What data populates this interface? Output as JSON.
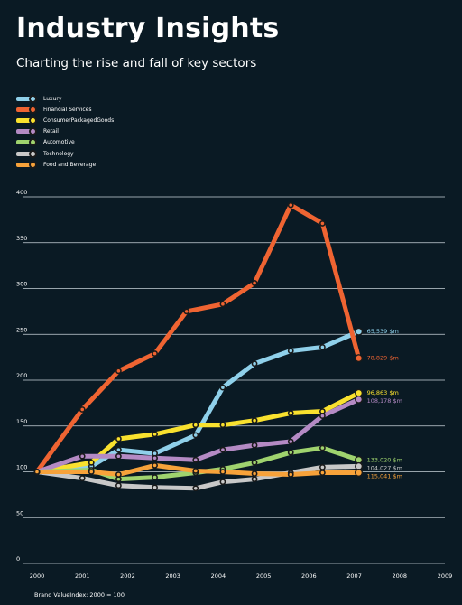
{
  "header": {
    "title": "Industry Insights",
    "subtitle": "Charting the rise and fall of key sectors"
  },
  "chart_data": {
    "type": "line",
    "title": "Industry Insights",
    "subtitle": "Charting the rise and fall of key sectors",
    "xlabel": "",
    "ylabel": "",
    "x": [
      "2000",
      "2001",
      "2002",
      "2003",
      "2004",
      "2005",
      "2006",
      "2007",
      "2008",
      "2009"
    ],
    "xlim": [
      2000,
      2009
    ],
    "ylim": [
      0,
      400
    ],
    "yticks": [
      0,
      50,
      100,
      150,
      200,
      250,
      300,
      350,
      400
    ],
    "grid": true,
    "legend_position": "top-left",
    "footnote": "Brand ValueIndex: 2000 = 100",
    "series": [
      {
        "name": "Luxury",
        "color": "#8fd0ea",
        "points": [
          [
            2000.0,
            100
          ],
          [
            2001.2,
            106
          ],
          [
            2001.8,
            124
          ],
          [
            2002.6,
            120
          ],
          [
            2003.5,
            140
          ],
          [
            2004.1,
            192
          ],
          [
            2004.8,
            218
          ],
          [
            2005.6,
            232
          ],
          [
            2006.3,
            236
          ],
          [
            2007.1,
            253
          ]
        ],
        "end_label": "65,539 $m"
      },
      {
        "name": "Financial Services",
        "color": "#ef6432",
        "points": [
          [
            2000.0,
            100
          ],
          [
            2001.0,
            168
          ],
          [
            2001.8,
            210
          ],
          [
            2002.6,
            229
          ],
          [
            2003.3,
            275
          ],
          [
            2004.1,
            283
          ],
          [
            2004.8,
            306
          ],
          [
            2005.6,
            391
          ],
          [
            2006.3,
            371
          ],
          [
            2007.1,
            224
          ]
        ],
        "end_label": "78,829 $m"
      },
      {
        "name": "ConsumerPackagedGoods",
        "color": "#f9e12e",
        "points": [
          [
            2000.0,
            100
          ],
          [
            2001.2,
            110
          ],
          [
            2001.8,
            136
          ],
          [
            2002.6,
            141
          ],
          [
            2003.5,
            151
          ],
          [
            2004.1,
            151
          ],
          [
            2004.8,
            156
          ],
          [
            2005.6,
            164
          ],
          [
            2006.3,
            166
          ],
          [
            2007.1,
            186
          ]
        ],
        "end_label": "96,863 $m"
      },
      {
        "name": "Retail",
        "color": "#b48ac4",
        "points": [
          [
            2000.0,
            100
          ],
          [
            2001.0,
            117
          ],
          [
            2001.8,
            117
          ],
          [
            2002.6,
            115
          ],
          [
            2003.5,
            113
          ],
          [
            2004.1,
            124
          ],
          [
            2004.8,
            129
          ],
          [
            2005.6,
            133
          ],
          [
            2006.3,
            161
          ],
          [
            2007.1,
            179
          ]
        ],
        "end_label": "108,178 $m"
      },
      {
        "name": "Automotive",
        "color": "#9fd36e",
        "points": [
          [
            2000.0,
            100
          ],
          [
            2001.2,
            102
          ],
          [
            2001.8,
            92
          ],
          [
            2002.6,
            94
          ],
          [
            2003.5,
            99
          ],
          [
            2004.1,
            103
          ],
          [
            2004.8,
            110
          ],
          [
            2005.6,
            121
          ],
          [
            2006.3,
            126
          ],
          [
            2007.1,
            113
          ]
        ],
        "end_label": "133,020 $m"
      },
      {
        "name": "Technology",
        "color": "#c8c8c8",
        "points": [
          [
            2000.0,
            100
          ],
          [
            2001.0,
            93
          ],
          [
            2001.8,
            85
          ],
          [
            2002.6,
            83
          ],
          [
            2003.5,
            82
          ],
          [
            2004.1,
            89
          ],
          [
            2004.8,
            92
          ],
          [
            2005.6,
            99
          ],
          [
            2006.3,
            105
          ],
          [
            2007.1,
            106
          ]
        ],
        "end_label": "104,027 $m"
      },
      {
        "name": "Food and Beverage",
        "color": "#f7a23a",
        "points": [
          [
            2000.0,
            100
          ],
          [
            2001.2,
            100
          ],
          [
            2001.8,
            97
          ],
          [
            2002.6,
            107
          ],
          [
            2003.5,
            101
          ],
          [
            2004.1,
            100
          ],
          [
            2004.8,
            98
          ],
          [
            2005.6,
            97
          ],
          [
            2006.3,
            99
          ],
          [
            2007.1,
            99
          ]
        ],
        "end_label": "115,041 $m"
      }
    ]
  }
}
